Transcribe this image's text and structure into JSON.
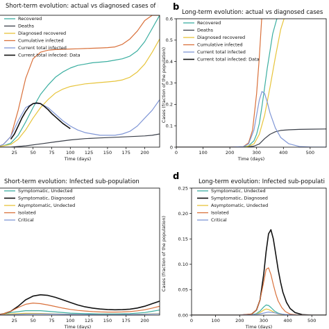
{
  "chart_data": [
    {
      "type": "line",
      "letter": "",
      "title": "Short-term evolution: actual vs diagnosed cases of infection",
      "xlabel": "Time (days)",
      "ylabel": "",
      "xlim": [
        0,
        220
      ],
      "ylim": [
        0,
        1
      ],
      "xticks": [
        "25",
        "50",
        "75",
        "100",
        "125",
        "150",
        "175",
        "200"
      ],
      "xtick_values": [
        25,
        50,
        75,
        100,
        125,
        150,
        175,
        200
      ],
      "yticks": [],
      "ytick_values": [],
      "legend": "top-left",
      "series": [
        {
          "name": "Recovered",
          "color": "#3aaea0",
          "x": [
            0,
            10,
            20,
            30,
            40,
            50,
            60,
            70,
            80,
            90,
            100,
            110,
            120,
            130,
            140,
            150,
            160,
            170,
            180,
            190,
            200,
            210,
            220
          ],
          "y": [
            0,
            0.01,
            0.03,
            0.09,
            0.19,
            0.3,
            0.4,
            0.47,
            0.53,
            0.57,
            0.6,
            0.62,
            0.63,
            0.64,
            0.645,
            0.65,
            0.66,
            0.67,
            0.69,
            0.73,
            0.8,
            0.9,
            1.0
          ]
        },
        {
          "name": "Deaths",
          "color": "#3a3f49",
          "x": [
            0,
            20,
            40,
            60,
            80,
            100,
            120,
            140,
            160,
            180,
            200,
            210,
            220
          ],
          "y": [
            0,
            0.0,
            0.01,
            0.025,
            0.04,
            0.055,
            0.065,
            0.07,
            0.075,
            0.08,
            0.085,
            0.09,
            0.1
          ]
        },
        {
          "name": "Diagnosed recovered",
          "color": "#e7c43a",
          "x": [
            0,
            10,
            20,
            30,
            40,
            50,
            60,
            70,
            80,
            90,
            100,
            110,
            120,
            130,
            140,
            150,
            160,
            170,
            180,
            190,
            200,
            210,
            220
          ],
          "y": [
            0,
            0.01,
            0.02,
            0.06,
            0.13,
            0.22,
            0.3,
            0.36,
            0.41,
            0.44,
            0.46,
            0.47,
            0.48,
            0.485,
            0.49,
            0.495,
            0.5,
            0.51,
            0.53,
            0.57,
            0.63,
            0.72,
            0.82
          ]
        },
        {
          "name": "Cumulative infected",
          "color": "#d9703a",
          "x": [
            0,
            10,
            20,
            30,
            40,
            50,
            60,
            70,
            80,
            90,
            100,
            110,
            120,
            130,
            140,
            150,
            160,
            170,
            180,
            190,
            200,
            210,
            220
          ],
          "y": [
            0.0,
            0.02,
            0.08,
            0.28,
            0.52,
            0.67,
            0.72,
            0.735,
            0.74,
            0.742,
            0.744,
            0.746,
            0.748,
            0.75,
            0.752,
            0.755,
            0.76,
            0.78,
            0.82,
            0.88,
            0.96,
            1.0,
            1.0
          ]
        },
        {
          "name": "Current total infected",
          "color": "#7f96d6",
          "x": [
            0,
            10,
            20,
            30,
            40,
            50,
            60,
            70,
            80,
            90,
            100,
            110,
            120,
            130,
            140,
            150,
            160,
            170,
            180,
            190,
            200,
            210,
            220
          ],
          "y": [
            0,
            0.02,
            0.08,
            0.2,
            0.3,
            0.33,
            0.33,
            0.3,
            0.25,
            0.2,
            0.16,
            0.13,
            0.11,
            0.1,
            0.09,
            0.09,
            0.09,
            0.1,
            0.12,
            0.16,
            0.22,
            0.28,
            0.36
          ]
        },
        {
          "name": "Current total infected: Data",
          "color": "#111111",
          "x": [
            20,
            25,
            30,
            35,
            40,
            45,
            50,
            55,
            60,
            65,
            70,
            75,
            80,
            85,
            90,
            95,
            100
          ],
          "y": [
            0.06,
            0.1,
            0.16,
            0.22,
            0.27,
            0.31,
            0.33,
            0.335,
            0.33,
            0.31,
            0.285,
            0.255,
            0.23,
            0.205,
            0.18,
            0.16,
            0.14
          ]
        }
      ]
    },
    {
      "type": "line",
      "letter": "b",
      "title": "Long-term evolution: actual vs diagnosed cases of i",
      "xlabel": "Time (days)",
      "ylabel": "Cases (fraction of the population)",
      "xlim": [
        0,
        560
      ],
      "ylim": [
        0,
        0.6
      ],
      "xticks": [
        "0",
        "100",
        "200",
        "300",
        "400",
        "500"
      ],
      "xtick_values": [
        0,
        100,
        200,
        300,
        400,
        500
      ],
      "yticks": [
        "0",
        "0.1",
        "0.2",
        "0.3",
        "0.4",
        "0.5",
        "0.6"
      ],
      "ytick_values": [
        0,
        0.1,
        0.2,
        0.3,
        0.4,
        0.5,
        0.6
      ],
      "legend": "top-left",
      "series": [
        {
          "name": "Recovered",
          "color": "#3aaea0",
          "x": [
            0,
            200,
            250,
            270,
            290,
            300,
            310,
            320,
            330,
            340,
            350,
            360,
            380
          ],
          "y": [
            0,
            0,
            0.001,
            0.006,
            0.03,
            0.06,
            0.11,
            0.19,
            0.28,
            0.37,
            0.45,
            0.53,
            0.62
          ]
        },
        {
          "name": "Deaths",
          "color": "#3a3f49",
          "x": [
            0,
            200,
            260,
            290,
            310,
            330,
            350,
            370,
            390,
            420,
            460,
            500,
            560
          ],
          "y": [
            0,
            0,
            0.001,
            0.005,
            0.015,
            0.04,
            0.06,
            0.072,
            0.078,
            0.081,
            0.083,
            0.084,
            0.085
          ]
        },
        {
          "name": "Diagnosed recovered",
          "color": "#e7c43a",
          "x": [
            0,
            200,
            260,
            290,
            310,
            330,
            350,
            370,
            390,
            410
          ],
          "y": [
            0,
            0,
            0.001,
            0.015,
            0.06,
            0.15,
            0.28,
            0.42,
            0.55,
            0.63
          ]
        },
        {
          "name": "Cumulative infected",
          "color": "#d9703a",
          "x": [
            0,
            200,
            250,
            270,
            285,
            300,
            310,
            320
          ],
          "y": [
            0,
            0,
            0.002,
            0.02,
            0.08,
            0.25,
            0.42,
            0.62
          ]
        },
        {
          "name": "Current total infected",
          "color": "#7f96d6",
          "x": [
            0,
            200,
            250,
            270,
            290,
            300,
            310,
            320,
            330,
            340,
            350,
            370,
            390,
            420,
            460,
            500,
            560
          ],
          "y": [
            0,
            0,
            0.002,
            0.015,
            0.08,
            0.15,
            0.22,
            0.26,
            0.25,
            0.21,
            0.16,
            0.09,
            0.045,
            0.016,
            0.003,
            0.0005,
            0
          ]
        },
        {
          "name": "Current total infected: Data",
          "color": "#111111",
          "x": [],
          "y": []
        }
      ]
    },
    {
      "type": "line",
      "letter": "",
      "title": "Short-term evolution: Infected sub-population",
      "xlabel": "Time (days)",
      "ylabel": "",
      "xlim": [
        0,
        220
      ],
      "ylim": [
        0,
        1
      ],
      "xticks": [
        "25",
        "50",
        "75",
        "100",
        "125",
        "150",
        "175",
        "200"
      ],
      "xtick_values": [
        25,
        50,
        75,
        100,
        125,
        150,
        175,
        200
      ],
      "yticks": [],
      "ytick_values": [],
      "legend": "top-left",
      "series": [
        {
          "name": "Symptomatic, Undected",
          "color": "#3aaea0",
          "x": [
            0,
            20,
            40,
            60,
            80,
            100,
            120,
            140,
            160,
            180,
            200,
            210,
            220
          ],
          "y": [
            0,
            0.02,
            0.035,
            0.035,
            0.025,
            0.016,
            0.012,
            0.01,
            0.01,
            0.012,
            0.02,
            0.03,
            0.04
          ]
        },
        {
          "name": "Symptomatic, Diagnosed",
          "color": "#111111",
          "x": [
            0,
            10,
            20,
            30,
            40,
            50,
            60,
            70,
            80,
            90,
            100,
            110,
            120,
            130,
            140,
            150,
            160,
            170,
            180,
            190,
            200,
            210,
            220
          ],
          "y": [
            0,
            0.01,
            0.03,
            0.07,
            0.12,
            0.15,
            0.16,
            0.155,
            0.14,
            0.12,
            0.1,
            0.08,
            0.065,
            0.055,
            0.048,
            0.044,
            0.042,
            0.043,
            0.047,
            0.056,
            0.07,
            0.09,
            0.11
          ]
        },
        {
          "name": "Asymptomatic, Undected",
          "color": "#e7c43a",
          "x": [
            0,
            20,
            40,
            60,
            80,
            100,
            120,
            140,
            160,
            180,
            200,
            220
          ],
          "y": [
            0,
            0.01,
            0.015,
            0.013,
            0.01,
            0.007,
            0.005,
            0.004,
            0.004,
            0.005,
            0.008,
            0.012
          ]
        },
        {
          "name": "Isolated",
          "color": "#d9703a",
          "x": [
            0,
            10,
            20,
            30,
            40,
            50,
            60,
            70,
            80,
            90,
            100,
            110,
            120,
            130,
            140,
            150,
            160,
            170,
            180,
            190,
            200,
            210,
            220
          ],
          "y": [
            0,
            0.01,
            0.03,
            0.06,
            0.085,
            0.095,
            0.09,
            0.08,
            0.068,
            0.055,
            0.045,
            0.037,
            0.032,
            0.028,
            0.025,
            0.024,
            0.024,
            0.025,
            0.028,
            0.034,
            0.042,
            0.055,
            0.07
          ]
        },
        {
          "name": "Critical",
          "color": "#7f96d6",
          "x": [
            0,
            20,
            40,
            60,
            80,
            100,
            120,
            140,
            160,
            180,
            200,
            220
          ],
          "y": [
            0,
            0.004,
            0.008,
            0.009,
            0.008,
            0.006,
            0.005,
            0.004,
            0.004,
            0.005,
            0.007,
            0.01
          ]
        }
      ]
    },
    {
      "type": "line",
      "letter": "d",
      "title": "Long-term evolution: Infected sub-population",
      "xlabel": "Time (days)",
      "ylabel": "Cases (fraction of the population)",
      "xlim": [
        0,
        560
      ],
      "ylim": [
        0,
        0.25
      ],
      "xticks": [
        "0",
        "100",
        "200",
        "300",
        "400",
        "500"
      ],
      "xtick_values": [
        0,
        100,
        200,
        300,
        400,
        500
      ],
      "yticks": [
        "0.00",
        "0.05",
        "0.10",
        "0.15",
        "0.20",
        "0.25"
      ],
      "ytick_values": [
        0,
        0.05,
        0.1,
        0.15,
        0.2,
        0.25
      ],
      "legend": "top-left",
      "series": [
        {
          "name": "Symptomatic, Undected",
          "color": "#3aaea0",
          "x": [
            0,
            200,
            250,
            270,
            285,
            300,
            310,
            320,
            330,
            345,
            360,
            380,
            410,
            450,
            500,
            560
          ],
          "y": [
            0,
            0,
            0.0005,
            0.003,
            0.008,
            0.016,
            0.02,
            0.019,
            0.015,
            0.008,
            0.004,
            0.0015,
            0.0003,
            0,
            0,
            0
          ]
        },
        {
          "name": "Symptomatic, Diagnosed",
          "color": "#111111",
          "x": [
            0,
            200,
            250,
            270,
            285,
            300,
            310,
            320,
            330,
            340,
            350,
            360,
            370,
            380,
            395,
            410,
            430,
            460,
            500,
            560
          ],
          "y": [
            0,
            0,
            0.002,
            0.01,
            0.03,
            0.08,
            0.125,
            0.16,
            0.168,
            0.15,
            0.12,
            0.09,
            0.065,
            0.045,
            0.025,
            0.013,
            0.005,
            0.001,
            0,
            0
          ]
        },
        {
          "name": "Asymptomatic, Undected",
          "color": "#e7c43a",
          "x": [
            0,
            200,
            250,
            270,
            285,
            300,
            310,
            320,
            330,
            345,
            360,
            380,
            410,
            450,
            500,
            560
          ],
          "y": [
            0,
            0,
            0.0003,
            0.002,
            0.005,
            0.01,
            0.012,
            0.011,
            0.009,
            0.005,
            0.0025,
            0.001,
            0.0002,
            0,
            0,
            0
          ]
        },
        {
          "name": "Isolated",
          "color": "#d9703a",
          "x": [
            0,
            200,
            250,
            270,
            285,
            300,
            310,
            320,
            330,
            340,
            350,
            360,
            375,
            390,
            410,
            440,
            480,
            560
          ],
          "y": [
            0,
            0,
            0.002,
            0.01,
            0.03,
            0.065,
            0.09,
            0.093,
            0.08,
            0.06,
            0.042,
            0.028,
            0.015,
            0.007,
            0.002,
            0.0004,
            0,
            0
          ]
        },
        {
          "name": "Critical",
          "color": "#7f96d6",
          "x": [
            0,
            200,
            250,
            280,
            300,
            320,
            340,
            360,
            390,
            430,
            500,
            560
          ],
          "y": [
            0,
            0,
            0.0005,
            0.002,
            0.004,
            0.006,
            0.005,
            0.003,
            0.0012,
            0.0003,
            0,
            0
          ]
        }
      ]
    }
  ]
}
